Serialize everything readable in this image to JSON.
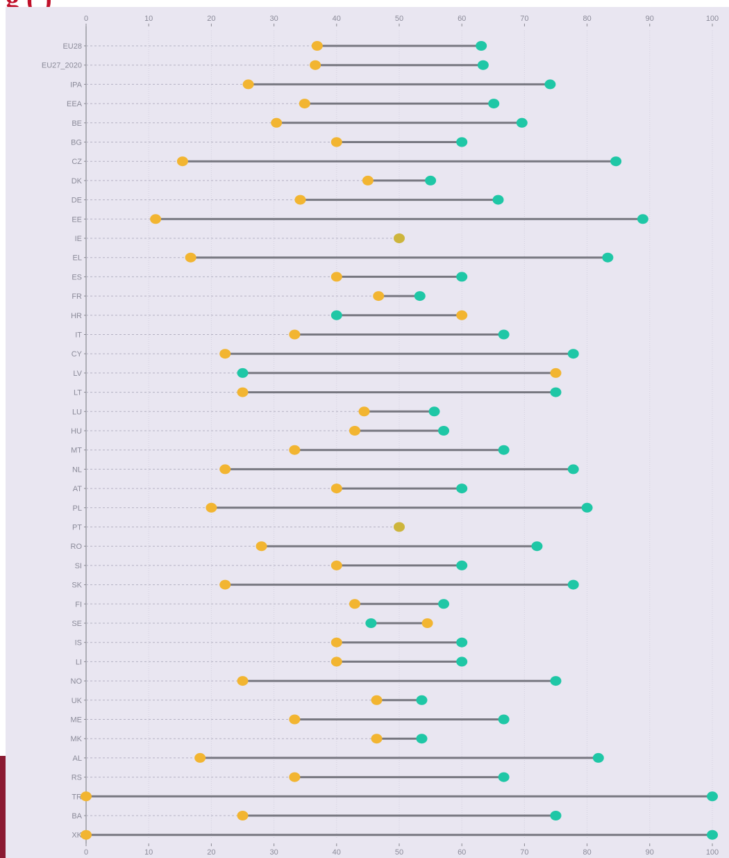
{
  "header": {
    "title_fragment": "g                    (    )"
  },
  "colors": {
    "background": "#e9e6f1",
    "title": "#c0102a",
    "side_bar": "#8b1a32",
    "connector": "#777780",
    "low_marker": "#f2b531",
    "high_marker": "#1fc7a6",
    "equal_marker": "#cdb53c",
    "grid": "#d3d0de",
    "axis": "#888890"
  },
  "chart_data": {
    "type": "dumbbell",
    "xlim": [
      0,
      100
    ],
    "xticks": [
      0,
      10,
      20,
      30,
      40,
      50,
      60,
      70,
      80,
      90,
      100
    ],
    "grid": true,
    "series": [
      {
        "name": "",
        "marker_color": "#f2b531"
      },
      {
        "name": "",
        "marker_color": "#1fc7a6"
      }
    ],
    "categories": [
      "EU28",
      "EU27_2020",
      "IPA",
      "EEA",
      "BE",
      "BG",
      "CZ",
      "DK",
      "DE",
      "EE",
      "IE",
      "EL",
      "ES",
      "FR",
      "HR",
      "IT",
      "CY",
      "LV",
      "LT",
      "LU",
      "HU",
      "MT",
      "NL",
      "AT",
      "PL",
      "PT",
      "RO",
      "SI",
      "SK",
      "FI",
      "SE",
      "IS",
      "LI",
      "NO",
      "UK",
      "ME",
      "MK",
      "AL",
      "RS",
      "TR",
      "BA",
      "XK"
    ],
    "values_a": [
      36.9,
      36.6,
      25.9,
      34.9,
      30.4,
      40.0,
      15.4,
      45.0,
      34.2,
      11.1,
      50.0,
      16.7,
      40.0,
      46.7,
      60.0,
      33.3,
      22.2,
      75.0,
      25.0,
      44.4,
      42.9,
      33.3,
      22.2,
      40.0,
      20.0,
      50.0,
      28.0,
      40.0,
      22.2,
      42.9,
      54.5,
      40.0,
      40.0,
      25.0,
      46.4,
      33.3,
      46.4,
      18.2,
      33.3,
      0,
      25.0,
      0
    ],
    "values_b": [
      63.1,
      63.4,
      74.1,
      65.1,
      69.6,
      60.0,
      84.6,
      55.0,
      65.8,
      88.9,
      50.0,
      83.3,
      60.0,
      53.3,
      40.0,
      66.7,
      77.8,
      25.0,
      75.0,
      55.6,
      57.1,
      66.7,
      77.8,
      60.0,
      80.0,
      50.0,
      72.0,
      60.0,
      77.8,
      57.1,
      45.5,
      60.0,
      60.0,
      75.0,
      53.6,
      66.7,
      53.6,
      81.8,
      66.7,
      100,
      75.0,
      100
    ]
  }
}
